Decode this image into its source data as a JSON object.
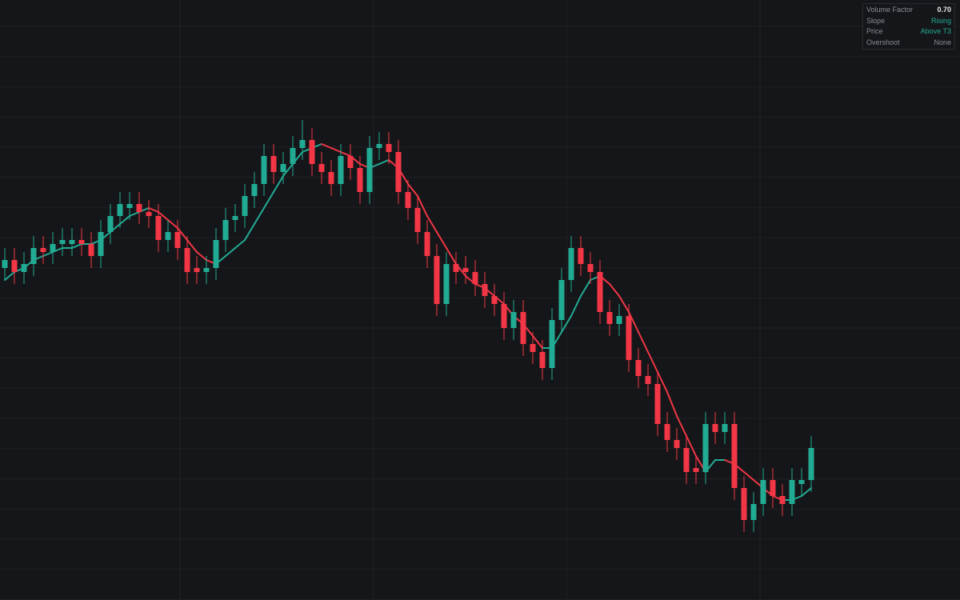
{
  "chart_data": {
    "type": "candlestick",
    "up_color": "#22ab94",
    "down_color": "#f23645",
    "ylim": [
      0,
      150
    ],
    "open": [
      83,
      85,
      82,
      84,
      88,
      87,
      89,
      89,
      90,
      89,
      86,
      92,
      96,
      98,
      99,
      97,
      96,
      90,
      92,
      88,
      83,
      82,
      83,
      90,
      95,
      96,
      101,
      104,
      111,
      107,
      109,
      113,
      115,
      109,
      107,
      104,
      111,
      108,
      102,
      113,
      114,
      112,
      102,
      98,
      92,
      86,
      74,
      84,
      83,
      82,
      79,
      76,
      74,
      68,
      72,
      64,
      62,
      58,
      70,
      80,
      88,
      84,
      82,
      72,
      69,
      71,
      60,
      56,
      54,
      44,
      40,
      38,
      33,
      32,
      44,
      42,
      44,
      28,
      20,
      24,
      30,
      26,
      24,
      29,
      30
    ],
    "high": [
      88,
      88,
      87,
      91,
      91,
      92,
      93,
      93,
      93,
      92,
      95,
      99,
      102,
      102,
      102,
      100,
      99,
      95,
      95,
      91,
      86,
      86,
      93,
      98,
      99,
      104,
      107,
      114,
      114,
      112,
      116,
      120,
      118,
      112,
      110,
      114,
      114,
      111,
      116,
      117,
      117,
      115,
      105,
      101,
      95,
      89,
      87,
      87,
      86,
      85,
      82,
      79,
      77,
      75,
      75,
      67,
      65,
      73,
      83,
      91,
      91,
      87,
      85,
      75,
      74,
      74,
      63,
      59,
      57,
      47,
      43,
      41,
      36,
      47,
      47,
      47,
      47,
      31,
      27,
      33,
      33,
      29,
      33,
      33,
      41
    ],
    "low": [
      80,
      79,
      79,
      81,
      84,
      84,
      86,
      86,
      86,
      83,
      83,
      89,
      93,
      95,
      94,
      93,
      87,
      87,
      85,
      79,
      79,
      79,
      80,
      87,
      92,
      93,
      98,
      101,
      104,
      104,
      106,
      110,
      106,
      104,
      101,
      101,
      105,
      99,
      99,
      110,
      109,
      99,
      95,
      89,
      83,
      71,
      71,
      79,
      79,
      76,
      73,
      71,
      65,
      65,
      61,
      59,
      55,
      55,
      67,
      77,
      81,
      79,
      69,
      66,
      66,
      57,
      53,
      51,
      41,
      37,
      35,
      29,
      29,
      29,
      39,
      39,
      25,
      17,
      17,
      21,
      23,
      21,
      21,
      26,
      27
    ],
    "close": [
      85,
      82,
      84,
      88,
      87,
      89,
      90,
      90,
      89,
      86,
      92,
      96,
      99,
      99,
      97,
      96,
      90,
      92,
      88,
      82,
      82,
      83,
      90,
      95,
      96,
      101,
      104,
      111,
      107,
      109,
      113,
      115,
      109,
      107,
      104,
      111,
      108,
      102,
      113,
      114,
      112,
      102,
      98,
      92,
      86,
      74,
      84,
      82,
      82,
      79,
      76,
      74,
      68,
      72,
      64,
      62,
      58,
      70,
      80,
      88,
      84,
      82,
      72,
      69,
      71,
      60,
      56,
      54,
      44,
      40,
      38,
      32,
      32,
      44,
      42,
      44,
      28,
      20,
      24,
      30,
      26,
      24,
      30,
      30,
      38
    ],
    "t3": [
      80,
      82,
      83,
      85,
      86,
      87,
      88,
      88,
      89,
      89,
      90,
      92,
      94,
      96,
      97,
      98,
      97,
      95,
      93,
      90,
      87,
      85,
      84,
      86,
      88,
      90,
      94,
      98,
      102,
      106,
      109,
      112,
      113,
      114,
      113,
      112,
      111,
      109,
      108,
      109,
      110,
      108,
      104,
      101,
      96,
      92,
      88,
      84,
      81,
      79,
      78,
      76,
      74,
      71,
      69,
      66,
      63,
      63,
      67,
      71,
      76,
      80,
      81,
      79,
      76,
      72,
      67,
      62,
      57,
      52,
      46,
      41,
      36,
      32,
      35,
      35,
      34,
      32,
      30,
      28,
      26,
      25,
      25,
      26,
      28
    ]
  },
  "panel": {
    "rows": [
      {
        "label": "Volume Factor",
        "value": "0.70"
      },
      {
        "label": "Slope",
        "value": "Rising"
      },
      {
        "label": "Price",
        "value": "Above T3"
      },
      {
        "label": "Overshoot",
        "value": "None"
      }
    ]
  }
}
